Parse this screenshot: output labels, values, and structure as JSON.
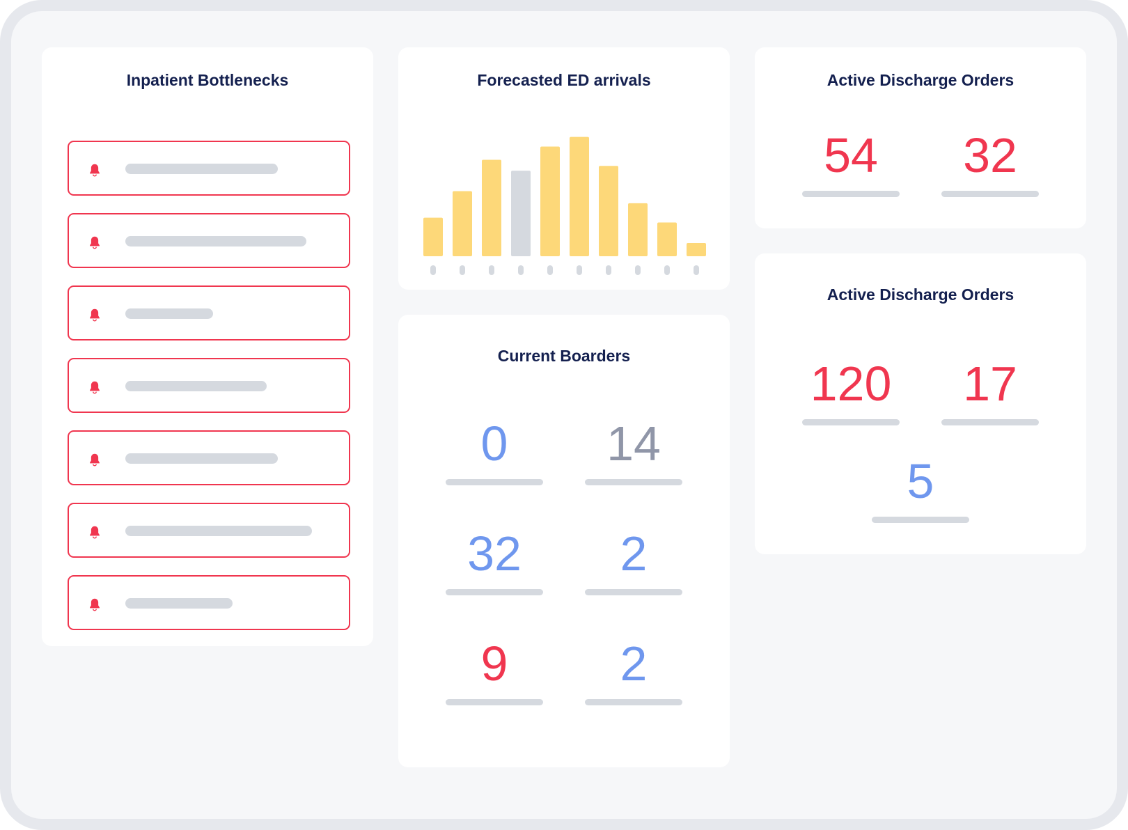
{
  "colors": {
    "alert": "#f0364f",
    "info": "#6f97ee",
    "muted": "#9096a8",
    "bar": "#fdd879",
    "bar_highlight": "#d5d9df",
    "placeholder": "#d5d9df"
  },
  "bottlenecks": {
    "title": "Inpatient Bottlenecks",
    "icon": "bell-icon",
    "items": [
      {
        "text_fill": 0.54
      },
      {
        "text_fill": 0.64
      },
      {
        "text_fill": 0.31
      },
      {
        "text_fill": 0.5
      },
      {
        "text_fill": 0.54
      },
      {
        "text_fill": 0.66
      },
      {
        "text_fill": 0.38
      }
    ]
  },
  "forecast": {
    "title": "Forecasted ED arrivals",
    "chart_data": {
      "type": "bar",
      "values": [
        3.2,
        5.4,
        8.0,
        7.1,
        9.1,
        9.9,
        7.5,
        4.4,
        2.8,
        1.1
      ],
      "highlight_index": 3,
      "ylim": [
        0,
        10.4
      ],
      "grid": false
    }
  },
  "discharge_top": {
    "title": "Active Discharge Orders",
    "stats": [
      {
        "value": "54",
        "color": "alert"
      },
      {
        "value": "32",
        "color": "alert"
      }
    ]
  },
  "boarders": {
    "title": "Current Boarders",
    "stats": [
      {
        "value": "0",
        "color": "info"
      },
      {
        "value": "14",
        "color": "muted"
      },
      {
        "value": "32",
        "color": "info"
      },
      {
        "value": "2",
        "color": "info"
      },
      {
        "value": "9",
        "color": "alert"
      },
      {
        "value": "2",
        "color": "info"
      }
    ]
  },
  "discharge_bottom": {
    "title": "Active Discharge Orders",
    "stats": [
      {
        "value": "120",
        "color": "alert"
      },
      {
        "value": "17",
        "color": "alert"
      },
      {
        "value": "5",
        "color": "info"
      }
    ]
  }
}
